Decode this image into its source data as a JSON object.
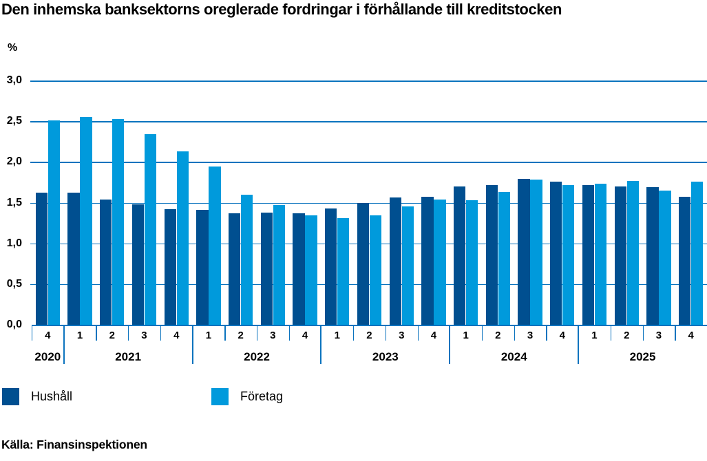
{
  "title": "Den inhemska banksektorns oreglerade fordringar i förhållande till kreditstocken",
  "chart_data": {
    "type": "bar",
    "title": "Den inhemska banksektorns oreglerade fordringar i förhållande till kreditstocken",
    "ylabel": "%",
    "unit_label": "%",
    "ylim": [
      0,
      3
    ],
    "ystep": 0.5,
    "y_tick_labels": [
      "0,0",
      "0,5",
      "1,0",
      "1,5",
      "2,0",
      "2,5",
      "3,0"
    ],
    "grid": true,
    "legend_position": "bottom",
    "categories": [
      "2020 Q4",
      "2021 Q1",
      "2021 Q2",
      "2021 Q3",
      "2021 Q4",
      "2022 Q1",
      "2022 Q2",
      "2022 Q3",
      "2022 Q4",
      "2023 Q1",
      "2023 Q2",
      "2023 Q3",
      "2023 Q4",
      "2024 Q1",
      "2024 Q2",
      "2024 Q3",
      "2024 Q4",
      "2025 Q1",
      "2025 Q2",
      "2025 Q3",
      "2025 Q4"
    ],
    "x_groups": [
      {
        "year": "2020",
        "quarters": [
          "4"
        ]
      },
      {
        "year": "2021",
        "quarters": [
          "1",
          "2",
          "3",
          "4"
        ]
      },
      {
        "year": "2022",
        "quarters": [
          "1",
          "2",
          "3",
          "4"
        ]
      },
      {
        "year": "2023",
        "quarters": [
          "1",
          "2",
          "3",
          "4"
        ]
      },
      {
        "year": "2024",
        "quarters": [
          "1",
          "2",
          "3",
          "4"
        ]
      },
      {
        "year": "2025",
        "quarters": [
          "1",
          "2",
          "3",
          "4"
        ]
      }
    ],
    "series": [
      {
        "name": "Hushåll",
        "color": "#004F90",
        "values": [
          1.62,
          1.62,
          1.54,
          1.48,
          1.42,
          1.41,
          1.37,
          1.38,
          1.37,
          1.43,
          1.5,
          1.56,
          1.57,
          1.7,
          1.72,
          1.79,
          1.76,
          1.72,
          1.7,
          1.69,
          1.57
        ]
      },
      {
        "name": "Företag",
        "color": "#009ADC",
        "values": [
          2.51,
          2.55,
          2.53,
          2.34,
          2.13,
          1.94,
          1.6,
          1.47,
          1.34,
          1.31,
          1.34,
          1.45,
          1.54,
          1.53,
          1.63,
          1.78,
          1.72,
          1.73,
          1.77,
          1.65,
          1.76
        ]
      }
    ]
  },
  "legend": {
    "items": [
      {
        "label": "Hushåll",
        "color": "#004F90"
      },
      {
        "label": "Företag",
        "color": "#009ADC"
      }
    ]
  },
  "source": "Källa: Finansinspektionen",
  "colors": {
    "grid": "#0A73BE",
    "axis": "#0A73BE",
    "text": "#000000",
    "background": "#FFFFFF"
  }
}
